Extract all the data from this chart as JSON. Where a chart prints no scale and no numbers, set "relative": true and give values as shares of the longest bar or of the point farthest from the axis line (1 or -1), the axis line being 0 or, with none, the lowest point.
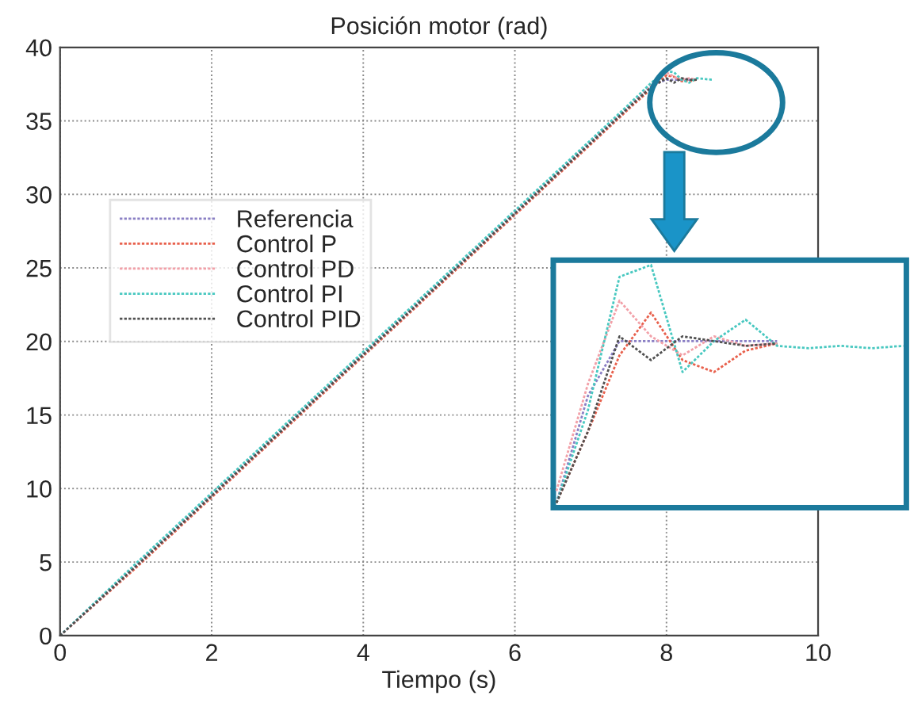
{
  "chart_data": [
    {
      "type": "line",
      "title": "Posición motor (rad)",
      "xlabel": "Tiempo (s)",
      "x": [
        0,
        1,
        2,
        3,
        4,
        5,
        6,
        7,
        7.5,
        7.8,
        8.0,
        8.1,
        8.2,
        8.3,
        8.4,
        8.6
      ],
      "series": [
        {
          "name": "Referencia",
          "color": "#8a7fc4",
          "values": [
            0,
            4.8,
            9.6,
            14.4,
            19.2,
            24,
            28.8,
            33.6,
            36,
            37.4,
            37.8,
            37.8,
            37.8,
            37.8,
            37.8,
            null
          ]
        },
        {
          "name": "Control P",
          "color": "#e8604c",
          "values": [
            0,
            4.6,
            9.4,
            14.2,
            19,
            23.8,
            28.6,
            33.4,
            35.8,
            37.2,
            38.1,
            38.0,
            37.7,
            37.7,
            37.8,
            null
          ]
        },
        {
          "name": "Control PD",
          "color": "#f2a0a8",
          "values": [
            0,
            4.7,
            9.5,
            14.3,
            19.1,
            23.9,
            28.7,
            33.5,
            35.9,
            37.4,
            38.3,
            38.0,
            37.8,
            37.9,
            37.8,
            null
          ]
        },
        {
          "name": "Control PI",
          "color": "#48c8c0",
          "values": [
            0,
            4.9,
            9.7,
            14.5,
            19.3,
            24.1,
            28.9,
            33.7,
            36.1,
            37.6,
            38.4,
            38.3,
            37.8,
            37.6,
            37.9,
            37.8
          ]
        },
        {
          "name": "Control PID",
          "color": "#505050",
          "values": [
            0,
            4.7,
            9.5,
            14.3,
            19.1,
            23.9,
            28.7,
            33.5,
            35.9,
            37.3,
            37.9,
            37.6,
            37.9,
            37.8,
            37.8,
            null
          ]
        }
      ],
      "xlim": [
        0,
        10
      ],
      "ylim": [
        0,
        40
      ],
      "xticks": [
        0,
        2,
        4,
        6,
        8,
        10
      ],
      "yticks": [
        0,
        5,
        10,
        15,
        20,
        25,
        30,
        35,
        40
      ],
      "grid": true,
      "legend": "left",
      "line_style": "dotted"
    },
    {
      "type": "line",
      "relative": true,
      "tick_labels": false,
      "categories": [
        null,
        null,
        null,
        null,
        null,
        null,
        null,
        null,
        null,
        null,
        null,
        null
      ],
      "series": [
        {
          "color": "#8a7fc4",
          "values": [
            0,
            0.45,
            0.68,
            0.68,
            0.68,
            0.68,
            0.68,
            0.68,
            null,
            null,
            null,
            null
          ]
        },
        {
          "color": "#e8604c",
          "values": [
            0,
            0.3,
            0.62,
            0.8,
            0.6,
            0.55,
            0.64,
            0.67,
            null,
            null,
            null,
            null
          ]
        },
        {
          "color": "#f2a0a8",
          "values": [
            0.05,
            0.5,
            0.85,
            0.7,
            0.62,
            0.7,
            0.66,
            0.67,
            null,
            null,
            null,
            null
          ]
        },
        {
          "color": "#48c8c0",
          "values": [
            0,
            0.39,
            0.95,
            1.0,
            0.55,
            0.68,
            0.77,
            0.66,
            0.65,
            0.66,
            0.65,
            0.66
          ]
        },
        {
          "color": "#505050",
          "values": [
            0,
            0.3,
            0.7,
            0.6,
            0.7,
            0.68,
            0.66,
            0.67,
            null,
            null,
            null,
            null
          ]
        }
      ],
      "line_style": "dotted"
    }
  ]
}
